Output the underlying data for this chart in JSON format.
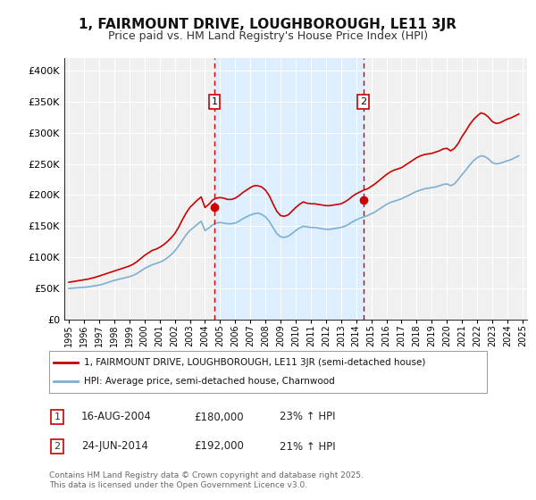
{
  "title": "1, FAIRMOUNT DRIVE, LOUGHBOROUGH, LE11 3JR",
  "subtitle": "Price paid vs. HM Land Registry's House Price Index (HPI)",
  "title_fontsize": 11,
  "subtitle_fontsize": 9,
  "bg_color": "#ffffff",
  "plot_bg_color": "#f0f0f0",
  "grid_color": "#ffffff",
  "red_color": "#cc0000",
  "blue_color": "#7bafd4",
  "shade_color": "#ddeeff",
  "vline_color": "#cc0000",
  "ylim": [
    0,
    420000
  ],
  "yticks": [
    0,
    50000,
    100000,
    150000,
    200000,
    250000,
    300000,
    350000,
    400000
  ],
  "ytick_labels": [
    "£0",
    "£50K",
    "£100K",
    "£150K",
    "£200K",
    "£250K",
    "£300K",
    "£350K",
    "£400K"
  ],
  "xtick_start": 1995,
  "xtick_end": 2026,
  "sale1_date": 2004.62,
  "sale1_price": 180000,
  "sale1_label": "1",
  "sale2_date": 2014.48,
  "sale2_price": 192000,
  "sale2_label": "2",
  "legend_line1": "1, FAIRMOUNT DRIVE, LOUGHBOROUGH, LE11 3JR (semi-detached house)",
  "legend_line2": "HPI: Average price, semi-detached house, Charnwood",
  "table_row1": [
    "1",
    "16-AUG-2004",
    "£180,000",
    "23% ↑ HPI"
  ],
  "table_row2": [
    "2",
    "24-JUN-2014",
    "£192,000",
    "21% ↑ HPI"
  ],
  "footer": "Contains HM Land Registry data © Crown copyright and database right 2025.\nThis data is licensed under the Open Government Licence v3.0.",
  "hpi_data": {
    "years": [
      1995.0,
      1995.25,
      1995.5,
      1995.75,
      1996.0,
      1996.25,
      1996.5,
      1996.75,
      1997.0,
      1997.25,
      1997.5,
      1997.75,
      1998.0,
      1998.25,
      1998.5,
      1998.75,
      1999.0,
      1999.25,
      1999.5,
      1999.75,
      2000.0,
      2000.25,
      2000.5,
      2000.75,
      2001.0,
      2001.25,
      2001.5,
      2001.75,
      2002.0,
      2002.25,
      2002.5,
      2002.75,
      2003.0,
      2003.25,
      2003.5,
      2003.75,
      2004.0,
      2004.25,
      2004.5,
      2004.75,
      2005.0,
      2005.25,
      2005.5,
      2005.75,
      2006.0,
      2006.25,
      2006.5,
      2006.75,
      2007.0,
      2007.25,
      2007.5,
      2007.75,
      2008.0,
      2008.25,
      2008.5,
      2008.75,
      2009.0,
      2009.25,
      2009.5,
      2009.75,
      2010.0,
      2010.25,
      2010.5,
      2010.75,
      2011.0,
      2011.25,
      2011.5,
      2011.75,
      2012.0,
      2012.25,
      2012.5,
      2012.75,
      2013.0,
      2013.25,
      2013.5,
      2013.75,
      2014.0,
      2014.25,
      2014.5,
      2014.75,
      2015.0,
      2015.25,
      2015.5,
      2015.75,
      2016.0,
      2016.25,
      2016.5,
      2016.75,
      2017.0,
      2017.25,
      2017.5,
      2017.75,
      2018.0,
      2018.25,
      2018.5,
      2018.75,
      2019.0,
      2019.25,
      2019.5,
      2019.75,
      2020.0,
      2020.25,
      2020.5,
      2020.75,
      2021.0,
      2021.25,
      2021.5,
      2021.75,
      2022.0,
      2022.25,
      2022.5,
      2022.75,
      2023.0,
      2023.25,
      2023.5,
      2023.75,
      2024.0,
      2024.25,
      2024.5,
      2024.75
    ],
    "values": [
      50000,
      50500,
      51000,
      51500,
      52000,
      52500,
      53500,
      54500,
      55500,
      57000,
      59000,
      61000,
      63000,
      64500,
      66000,
      67500,
      69000,
      71000,
      74000,
      78000,
      82000,
      85000,
      88000,
      90000,
      92000,
      95000,
      99000,
      104000,
      110000,
      118000,
      127000,
      136000,
      143000,
      148000,
      153000,
      158000,
      143000,
      147000,
      152000,
      155000,
      156000,
      155000,
      154000,
      154000,
      155000,
      158000,
      162000,
      165000,
      168000,
      170000,
      171000,
      169000,
      165000,
      158000,
      148000,
      138000,
      133000,
      132000,
      134000,
      138000,
      143000,
      147000,
      150000,
      149000,
      148000,
      148000,
      147000,
      146000,
      145000,
      145000,
      146000,
      147000,
      148000,
      150000,
      153000,
      157000,
      160000,
      163000,
      165000,
      167000,
      170000,
      173000,
      177000,
      181000,
      185000,
      188000,
      190000,
      192000,
      194000,
      197000,
      200000,
      203000,
      206000,
      208000,
      210000,
      211000,
      212000,
      213000,
      215000,
      217000,
      218000,
      215000,
      218000,
      225000,
      233000,
      240000,
      248000,
      255000,
      260000,
      263000,
      262000,
      258000,
      252000,
      250000,
      251000,
      253000,
      255000,
      257000,
      260000,
      263000
    ]
  },
  "red_data": {
    "years": [
      1995.0,
      1995.25,
      1995.5,
      1995.75,
      1996.0,
      1996.25,
      1996.5,
      1996.75,
      1997.0,
      1997.25,
      1997.5,
      1997.75,
      1998.0,
      1998.25,
      1998.5,
      1998.75,
      1999.0,
      1999.25,
      1999.5,
      1999.75,
      2000.0,
      2000.25,
      2000.5,
      2000.75,
      2001.0,
      2001.25,
      2001.5,
      2001.75,
      2002.0,
      2002.25,
      2002.5,
      2002.75,
      2003.0,
      2003.25,
      2003.5,
      2003.75,
      2004.0,
      2004.25,
      2004.5,
      2004.75,
      2005.0,
      2005.25,
      2005.5,
      2005.75,
      2006.0,
      2006.25,
      2006.5,
      2006.75,
      2007.0,
      2007.25,
      2007.5,
      2007.75,
      2008.0,
      2008.25,
      2008.5,
      2008.75,
      2009.0,
      2009.25,
      2009.5,
      2009.75,
      2010.0,
      2010.25,
      2010.5,
      2010.75,
      2011.0,
      2011.25,
      2011.5,
      2011.75,
      2012.0,
      2012.25,
      2012.5,
      2012.75,
      2013.0,
      2013.25,
      2013.5,
      2013.75,
      2014.0,
      2014.25,
      2014.5,
      2014.75,
      2015.0,
      2015.25,
      2015.5,
      2015.75,
      2016.0,
      2016.25,
      2016.5,
      2016.75,
      2017.0,
      2017.25,
      2017.5,
      2017.75,
      2018.0,
      2018.25,
      2018.5,
      2018.75,
      2019.0,
      2019.25,
      2019.5,
      2019.75,
      2020.0,
      2020.25,
      2020.5,
      2020.75,
      2021.0,
      2021.25,
      2021.5,
      2021.75,
      2022.0,
      2022.25,
      2022.5,
      2022.75,
      2023.0,
      2023.25,
      2023.5,
      2023.75,
      2024.0,
      2024.25,
      2024.5,
      2024.75
    ],
    "values": [
      60000,
      61000,
      62000,
      63000,
      64000,
      65000,
      66500,
      68000,
      70000,
      72000,
      74000,
      76000,
      78000,
      80000,
      82000,
      84000,
      86000,
      89000,
      93000,
      98000,
      103000,
      107000,
      111000,
      113000,
      116000,
      120000,
      125000,
      131000,
      138000,
      148000,
      160000,
      171000,
      180000,
      186000,
      192000,
      197000,
      180000,
      185000,
      192000,
      195000,
      196000,
      195000,
      193000,
      193000,
      195000,
      199000,
      204000,
      208000,
      212000,
      215000,
      215000,
      213000,
      208000,
      199000,
      186000,
      174000,
      167000,
      166000,
      168000,
      174000,
      180000,
      185000,
      189000,
      187000,
      186000,
      186000,
      185000,
      184000,
      183000,
      183000,
      184000,
      185000,
      186000,
      189000,
      193000,
      198000,
      202000,
      205000,
      208000,
      210000,
      214000,
      218000,
      223000,
      228000,
      233000,
      237000,
      240000,
      242000,
      244000,
      248000,
      252000,
      256000,
      260000,
      263000,
      265000,
      266000,
      267000,
      269000,
      271000,
      274000,
      275000,
      271000,
      275000,
      283000,
      294000,
      303000,
      313000,
      321000,
      327000,
      332000,
      330000,
      325000,
      318000,
      315000,
      316000,
      319000,
      322000,
      324000,
      327000,
      330000
    ]
  }
}
